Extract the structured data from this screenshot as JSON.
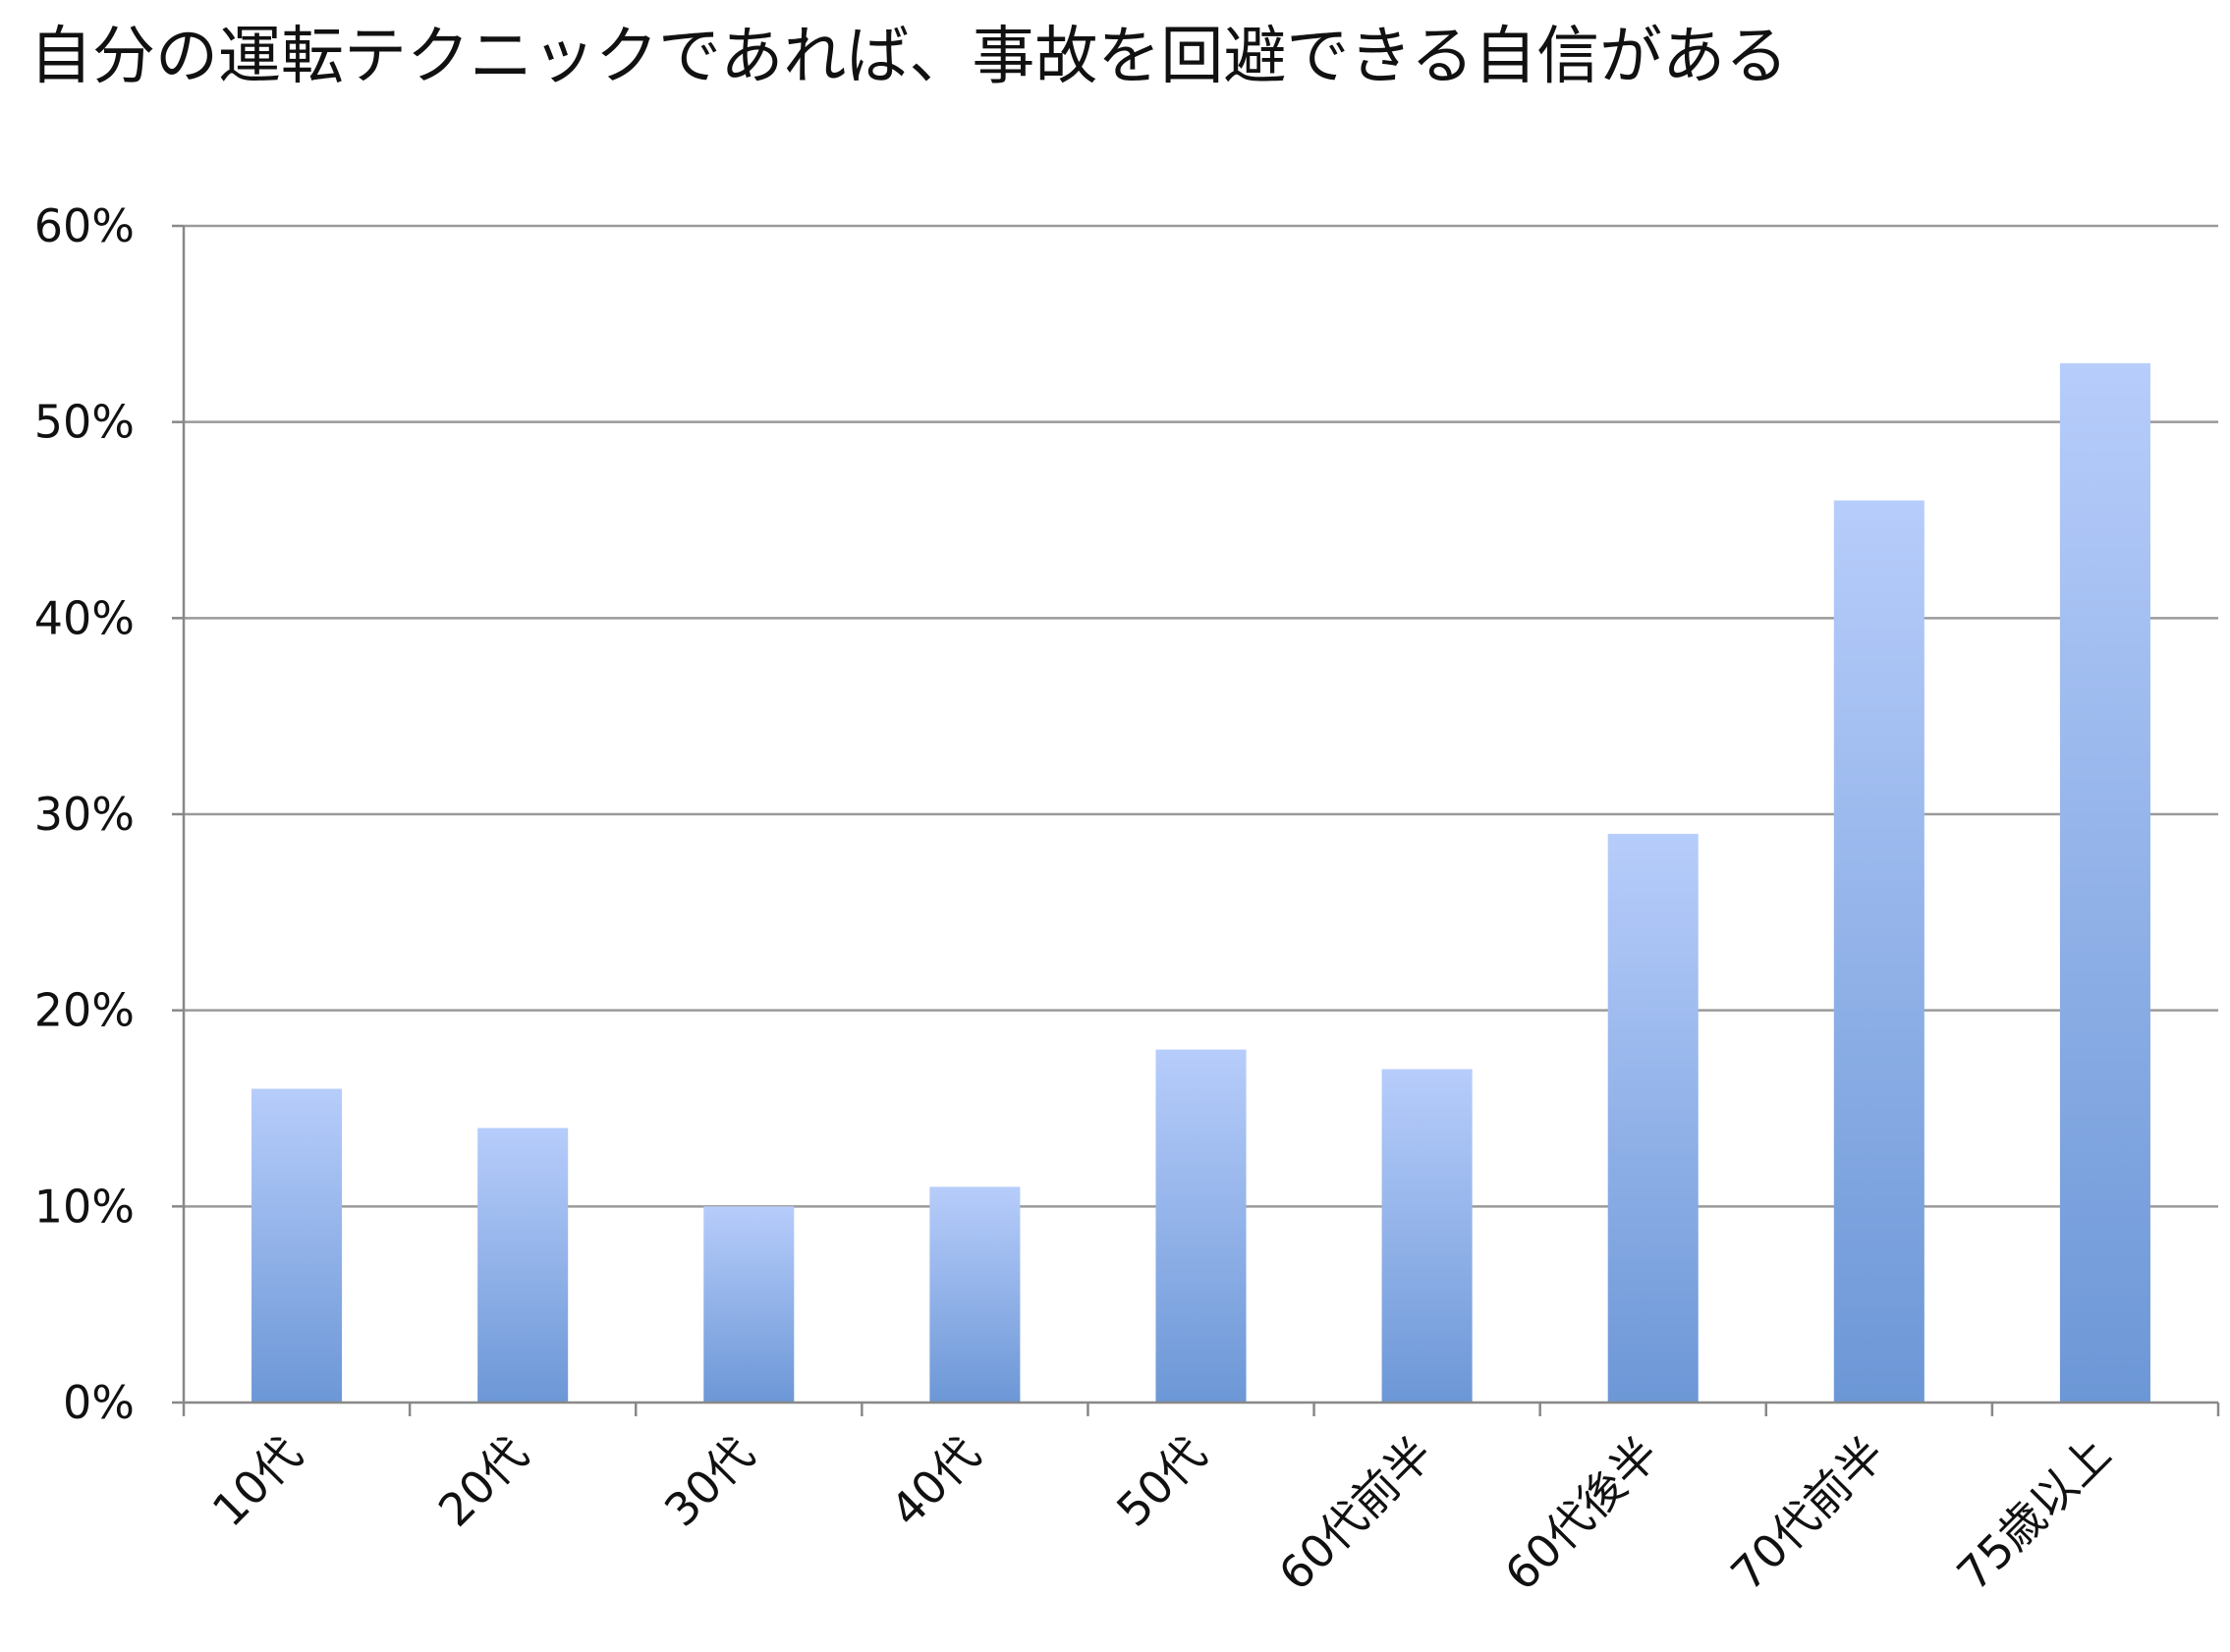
{
  "chart_data": {
    "type": "bar",
    "title": "自分の運転テクニックであれば、事故を回避できる自信がある",
    "xlabel": "",
    "ylabel": "",
    "categories": [
      "10代",
      "20代",
      "30代",
      "40代",
      "50代",
      "60代前半",
      "60代後半",
      "70代前半",
      "75歳以上"
    ],
    "values": [
      16,
      14,
      10,
      11,
      18,
      17,
      29,
      46,
      53
    ],
    "ylim": [
      0,
      60
    ],
    "yticks": [
      "0%",
      "10%",
      "20%",
      "30%",
      "40%",
      "50%",
      "60%"
    ],
    "grid": true,
    "legend": "none",
    "colors": {
      "bar_top": "#B7CDFB",
      "bar_bottom": "#6C97D6",
      "grid": "#9A9A9A",
      "axis": "#888888"
    }
  }
}
